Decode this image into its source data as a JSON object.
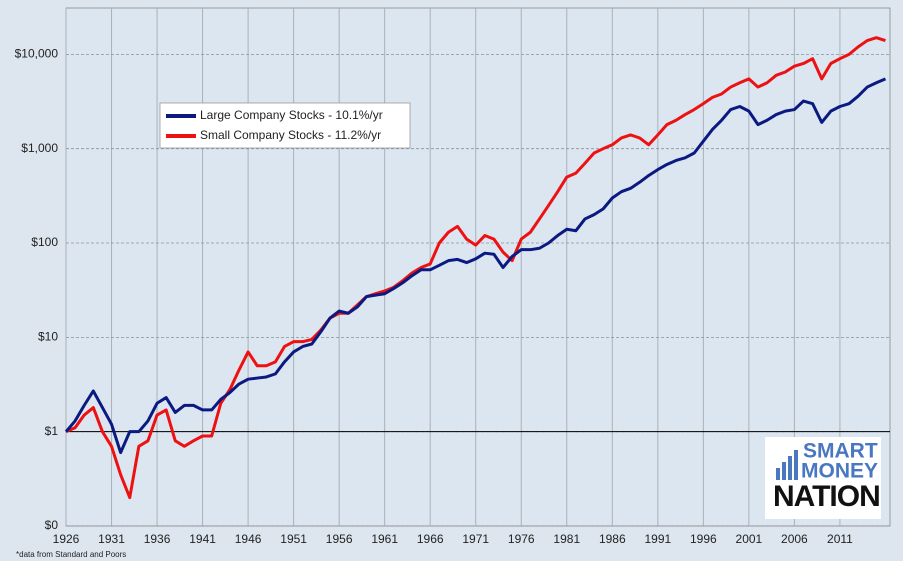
{
  "chart_data": {
    "type": "line",
    "x": [
      1926,
      1927,
      1928,
      1929,
      1930,
      1931,
      1932,
      1933,
      1934,
      1935,
      1936,
      1937,
      1938,
      1939,
      1940,
      1941,
      1942,
      1943,
      1944,
      1945,
      1946,
      1947,
      1948,
      1949,
      1950,
      1951,
      1952,
      1953,
      1954,
      1955,
      1956,
      1957,
      1958,
      1959,
      1960,
      1961,
      1962,
      1963,
      1964,
      1965,
      1966,
      1967,
      1968,
      1969,
      1970,
      1971,
      1972,
      1973,
      1974,
      1975,
      1976,
      1977,
      1978,
      1979,
      1980,
      1981,
      1982,
      1983,
      1984,
      1985,
      1986,
      1987,
      1988,
      1989,
      1990,
      1991,
      1992,
      1993,
      1994,
      1995,
      1996,
      1997,
      1998,
      1999,
      2000,
      2001,
      2002,
      2003,
      2004,
      2005,
      2006,
      2007,
      2008,
      2009,
      2010,
      2011,
      2012,
      2013,
      2014,
      2015,
      2016
    ],
    "series": [
      {
        "name": "Large Company Stocks - 10.1%/yr",
        "color": "#0a1a80",
        "values": [
          1,
          1.3,
          1.9,
          2.7,
          1.8,
          1.2,
          0.6,
          1.0,
          1.0,
          1.3,
          2.0,
          2.3,
          1.6,
          1.9,
          1.9,
          1.7,
          1.7,
          2.2,
          2.6,
          3.2,
          3.6,
          3.7,
          3.8,
          4.1,
          5.5,
          7,
          8,
          8.5,
          11.5,
          16,
          19,
          18,
          21,
          27,
          28,
          29,
          33,
          38,
          45,
          52,
          52,
          58,
          65,
          67,
          62,
          68,
          78,
          76,
          55,
          72,
          85,
          85,
          88,
          100,
          120,
          140,
          135,
          180,
          200,
          230,
          300,
          350,
          380,
          440,
          520,
          600,
          680,
          750,
          800,
          900,
          1200,
          1600,
          2000,
          2600,
          2800,
          2500,
          1800,
          2000,
          2300,
          2500,
          2600,
          3200,
          3000,
          1900,
          2500,
          2800,
          3000,
          3600,
          4500,
          5000,
          5500
        ]
      },
      {
        "name": "Small Company Stocks - 11.2%/yr",
        "color": "#ee1111",
        "values": [
          1,
          1.1,
          1.5,
          1.8,
          1.0,
          0.7,
          0.35,
          0.2,
          0.7,
          0.8,
          1.5,
          1.7,
          0.8,
          0.7,
          0.8,
          0.9,
          0.9,
          2.0,
          2.8,
          4.5,
          7.0,
          5.0,
          5.0,
          5.5,
          8,
          9,
          9,
          9.5,
          12,
          16,
          18,
          18,
          22,
          27,
          29,
          31,
          34,
          40,
          48,
          55,
          60,
          100,
          130,
          150,
          110,
          95,
          120,
          110,
          80,
          65,
          110,
          130,
          180,
          250,
          350,
          500,
          550,
          700,
          900,
          1000,
          1100,
          1300,
          1400,
          1300,
          1100,
          1400,
          1800,
          2000,
          2300,
          2600,
          3000,
          3500,
          3800,
          4500,
          5000,
          5500,
          4500,
          5000,
          6000,
          6500,
          7500,
          8000,
          9000,
          5500,
          8000,
          9000,
          10000,
          12000,
          14000,
          15000,
          14000
        ]
      }
    ],
    "xlim": [
      1926,
      2016.5
    ],
    "xticks": [
      1926,
      1931,
      1936,
      1941,
      1946,
      1951,
      1956,
      1961,
      1966,
      1971,
      1976,
      1981,
      1986,
      1991,
      1996,
      2001,
      2006,
      2011
    ],
    "ylim": [
      0.1,
      31000
    ],
    "log_scale": true,
    "yticks": [
      {
        "value": 0.1,
        "label": "$0"
      },
      {
        "value": 1,
        "label": "$1"
      },
      {
        "value": 10,
        "label": "$10"
      },
      {
        "value": 100,
        "label": "$100"
      },
      {
        "value": 1000,
        "label": "$1,000"
      },
      {
        "value": 10000,
        "label": "$10,000"
      }
    ],
    "reference_line": 1,
    "grid": true,
    "legend": "upper left",
    "annotation": "*data from Standard and Poors",
    "logo": [
      "SMART",
      "MONEY",
      "NATION"
    ]
  }
}
